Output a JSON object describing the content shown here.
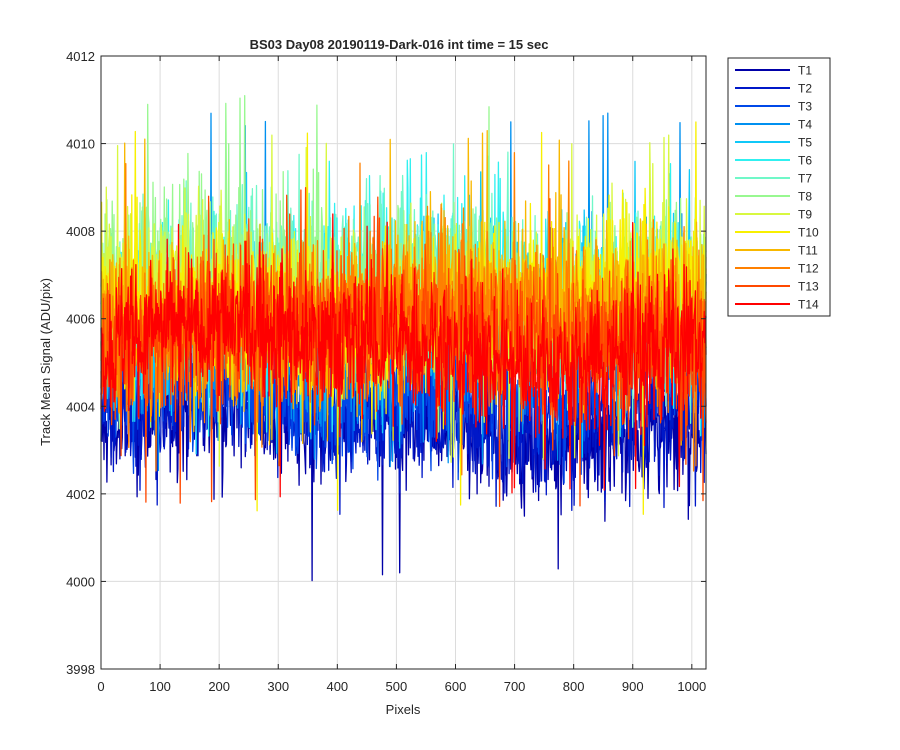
{
  "chart_data": {
    "type": "line",
    "title": "BS03 Day08 20190119-Dark-016 int time = 15 sec",
    "xlabel": "Pixels",
    "ylabel": "Track Mean Signal (ADU/pix)",
    "xlim": [
      0,
      1024
    ],
    "ylim": [
      3998,
      4012
    ],
    "xticks": [
      0,
      100,
      200,
      300,
      400,
      500,
      600,
      700,
      800,
      900,
      1000
    ],
    "yticks": [
      3998,
      4000,
      4002,
      4004,
      4006,
      4008,
      4010,
      4012
    ],
    "grid": true,
    "legend_position": "outside-top-right",
    "n_points_per_series": 1024,
    "series": [
      {
        "name": "T1",
        "color": "#0000a8",
        "mean": 4003.6,
        "noise": 0.75,
        "min": 4000.0,
        "max": 4005.0
      },
      {
        "name": "T2",
        "color": "#0018c8",
        "mean": 4003.9,
        "noise": 0.7,
        "min": 4001.5,
        "max": 4005.6
      },
      {
        "name": "T3",
        "color": "#0048e8",
        "mean": 4004.6,
        "noise": 0.75,
        "min": 4002.2,
        "max": 4007.2
      },
      {
        "name": "T4",
        "color": "#0090f0",
        "mean": 4005.6,
        "noise": 0.9,
        "min": 4002.5,
        "max": 4010.7
      },
      {
        "name": "T5",
        "color": "#10c8f8",
        "mean": 4006.1,
        "noise": 0.95,
        "min": 4002.8,
        "max": 4009.6
      },
      {
        "name": "T6",
        "color": "#30f0f0",
        "mean": 4006.5,
        "noise": 0.95,
        "min": 4003.2,
        "max": 4009.8
      },
      {
        "name": "T7",
        "color": "#70f8c8",
        "mean": 4006.8,
        "noise": 0.95,
        "min": 4003.4,
        "max": 4010.0
      },
      {
        "name": "T8",
        "color": "#98f890",
        "mean": 4006.7,
        "noise": 1.0,
        "min": 4003.3,
        "max": 4011.1
      },
      {
        "name": "T9",
        "color": "#d8f840",
        "mean": 4006.5,
        "noise": 0.95,
        "min": 4002.6,
        "max": 4010.2
      },
      {
        "name": "T10",
        "color": "#f8f000",
        "mean": 4006.3,
        "noise": 0.95,
        "min": 4001.5,
        "max": 4010.5
      },
      {
        "name": "T11",
        "color": "#f8b800",
        "mean": 4006.1,
        "noise": 0.95,
        "min": 4003.0,
        "max": 4010.3
      },
      {
        "name": "T12",
        "color": "#ff8000",
        "mean": 4005.9,
        "noise": 0.95,
        "min": 4002.4,
        "max": 4009.8
      },
      {
        "name": "T13",
        "color": "#ff4800",
        "mean": 4005.6,
        "noise": 0.9,
        "min": 4001.6,
        "max": 4009.0
      },
      {
        "name": "T14",
        "color": "#ff0000",
        "mean": 4005.4,
        "noise": 0.85,
        "min": 4001.9,
        "max": 4008.4
      }
    ]
  }
}
